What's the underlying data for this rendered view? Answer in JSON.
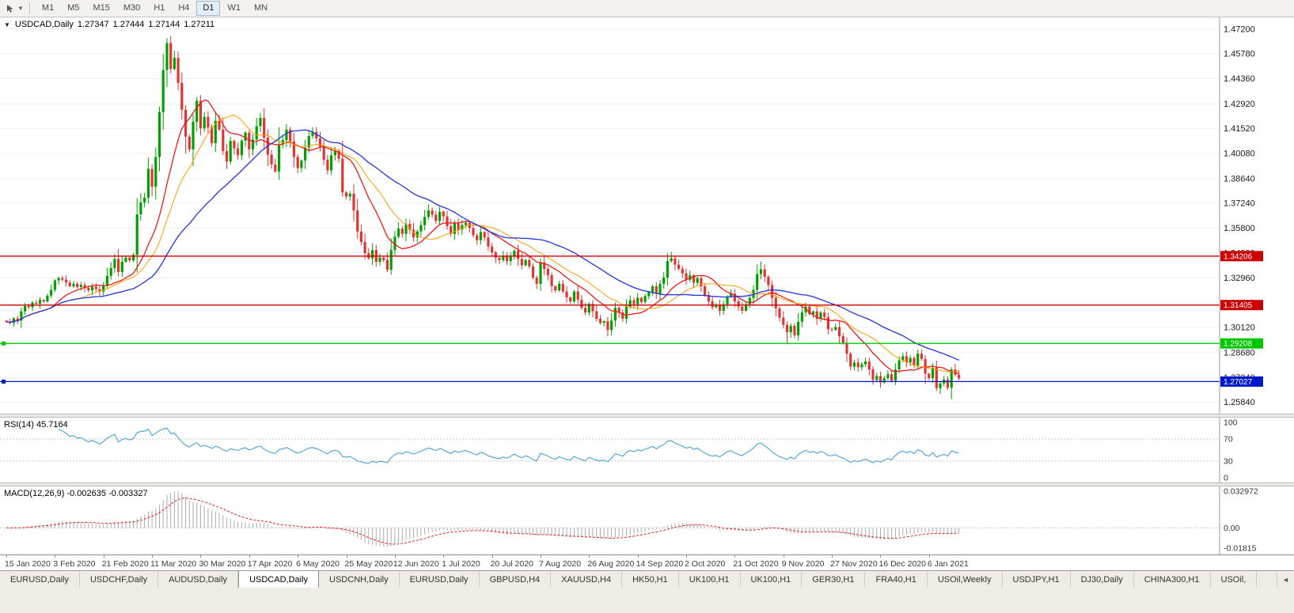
{
  "toolbar": {
    "tools": [
      {
        "name": "cursor-tool"
      }
    ],
    "timeframes": [
      "M1",
      "M5",
      "M15",
      "M30",
      "H1",
      "H4",
      "D1",
      "W1",
      "MN"
    ],
    "active_timeframe": "D1",
    "caret": "▼"
  },
  "chart_title": {
    "collapse_icon": "▼",
    "symbol": "USDCAD,Daily",
    "open": "1.27347",
    "high": "1.27444",
    "low": "1.27144",
    "close": "1.27211"
  },
  "chart_data": {
    "type": "candlestick",
    "symbol": "USDCAD",
    "timeframe": "Daily",
    "up_color": "#00A000",
    "down_color": "#E03535",
    "first_open": 1.3052,
    "price_top": 1.4787,
    "price_bottom": 1.2519,
    "closes": [
      1.3045,
      1.3038,
      1.3065,
      1.3052,
      1.3105,
      1.3135,
      1.3128,
      1.3155,
      1.3148,
      1.317,
      1.3162,
      1.3195,
      1.3228,
      1.3282,
      1.3296,
      1.3286,
      1.327,
      1.3248,
      1.3262,
      1.3244,
      1.3256,
      1.3238,
      1.3225,
      1.3246,
      1.3232,
      1.3218,
      1.3252,
      1.3308,
      1.3352,
      1.3405,
      1.333,
      1.3388,
      1.3412,
      1.3396,
      1.3428,
      1.366,
      1.3728,
      1.3755,
      1.392,
      1.3818,
      1.3988,
      1.4245,
      1.4486,
      1.464,
      1.4492,
      1.4555,
      1.4412,
      1.4258,
      1.4105,
      1.4032,
      1.419,
      1.431,
      1.4152,
      1.4218,
      1.4158,
      1.4068,
      1.4195,
      1.4145,
      1.4022,
      1.3962,
      1.408,
      1.4038,
      1.3998,
      1.4082,
      1.4128,
      1.4032,
      1.4088,
      1.4165,
      1.4212,
      1.4098,
      1.4002,
      1.3945,
      1.3905,
      1.406,
      1.4085,
      1.4145,
      1.4078,
      1.3988,
      1.3925,
      1.3968,
      1.4042,
      1.4108,
      1.4132,
      1.4095,
      1.4048,
      1.3972,
      1.3912,
      1.3998,
      1.4025,
      1.3978,
      1.3785,
      1.3762,
      1.3778,
      1.3682,
      1.3562,
      1.3502,
      1.3438,
      1.3408,
      1.3455,
      1.3388,
      1.3412,
      1.3398,
      1.3342,
      1.3455,
      1.3532,
      1.3578,
      1.3548,
      1.3605,
      1.3572,
      1.3528,
      1.3562,
      1.3598,
      1.3645,
      1.3682,
      1.3658,
      1.3622,
      1.3675,
      1.3648,
      1.3592,
      1.3548,
      1.3608,
      1.3572,
      1.3598,
      1.3612,
      1.3582,
      1.354,
      1.3512,
      1.3558,
      1.3528,
      1.3475,
      1.3442,
      1.3412,
      1.3398,
      1.3422,
      1.3392,
      1.3418,
      1.3452,
      1.3405,
      1.3368,
      1.3398,
      1.3362,
      1.3298,
      1.3262,
      1.3385,
      1.3348,
      1.3312,
      1.3248,
      1.3225,
      1.3262,
      1.3218,
      1.3185,
      1.3162,
      1.3218,
      1.3172,
      1.3125,
      1.3098,
      1.3148,
      1.3105,
      1.3062,
      1.3038,
      1.3048,
      1.2998,
      1.3052,
      1.3125,
      1.3098,
      1.3062,
      1.3132,
      1.3168,
      1.3145,
      1.3182,
      1.3158,
      1.3192,
      1.3215,
      1.3248,
      1.3205,
      1.3262,
      1.3298,
      1.3392,
      1.3408,
      1.3372,
      1.3348,
      1.3322,
      1.3285,
      1.3312,
      1.3268,
      1.3295,
      1.3248,
      1.3198,
      1.3162,
      1.3128,
      1.3142,
      1.3108,
      1.3145,
      1.3188,
      1.3205,
      1.3162,
      1.3132,
      1.3108,
      1.3145,
      1.3182,
      1.3228,
      1.3318,
      1.3345,
      1.3302,
      1.3255,
      1.3182,
      1.3122,
      1.3068,
      1.3028,
      1.2985,
      1.3022,
      1.2968,
      1.3045,
      1.3098,
      1.3132,
      1.3088,
      1.3105,
      1.3062,
      1.3098,
      1.3072,
      1.3002,
      1.2998,
      1.3015,
      1.2962,
      1.2925,
      1.2862,
      1.2788,
      1.2812,
      1.2785,
      1.2802,
      1.2818,
      1.2772,
      1.2712,
      1.2735,
      1.2698,
      1.2722,
      1.2745,
      1.2708,
      1.2772,
      1.2825,
      1.2848,
      1.2812,
      1.2838,
      1.2795,
      1.2862,
      1.2832,
      1.2748,
      1.2722,
      1.2782,
      1.2665,
      1.2692,
      1.2715,
      1.2668,
      1.2772,
      1.2742,
      1.2721
    ],
    "wick_overrides": [
      {
        "bar": 43,
        "high": 1.4669
      },
      {
        "bar": 178,
        "high": 1.3445
      },
      {
        "bar": 202,
        "high": 1.339
      },
      {
        "bar": 209,
        "low": 1.2922
      },
      {
        "bar": 249,
        "low": 1.2648
      },
      {
        "bar": 250,
        "low": 1.263
      },
      {
        "bar": 252,
        "low": 1.2655
      }
    ],
    "mas": [
      {
        "period": 13,
        "color": "#F01818",
        "width": 1.3
      },
      {
        "period": 21,
        "color": "#FF9C00",
        "width": 1.0
      },
      {
        "period": 40,
        "color": "#2233DD",
        "width": 1.3
      }
    ],
    "hlines": [
      {
        "price": 1.34206,
        "color": "#CC0000",
        "tag": "1.34206",
        "handle": false
      },
      {
        "price": 1.31405,
        "color": "#CC0000",
        "tag": "1.31405",
        "handle": false
      },
      {
        "price": 1.29208,
        "color": "#00C800",
        "tag": "1.29208",
        "handle": true
      },
      {
        "price": 1.27027,
        "color": "#0018C8",
        "tag": "1.27027",
        "handle": true
      }
    ],
    "y_axis_labels": [
      "1.47200",
      "1.45780",
      "1.44360",
      "1.42920",
      "1.41520",
      "1.40080",
      "1.38640",
      "1.37240",
      "1.35800",
      "1.34380",
      "1.32960",
      "1.31520",
      "1.30120",
      "1.28680",
      "1.27240",
      "1.25840"
    ],
    "x_labels": [
      {
        "bar": 0,
        "text": "15 Jan 2020"
      },
      {
        "bar": 13,
        "text": "3 Feb 2020"
      },
      {
        "bar": 26,
        "text": "21 Feb 2020"
      },
      {
        "bar": 39,
        "text": "11 Mar 2020"
      },
      {
        "bar": 52,
        "text": "30 Mar 2020"
      },
      {
        "bar": 65,
        "text": "17 Apr 2020"
      },
      {
        "bar": 78,
        "text": "6 May 2020"
      },
      {
        "bar": 91,
        "text": "25 May 2020"
      },
      {
        "bar": 104,
        "text": "12 Jun 2020"
      },
      {
        "bar": 117,
        "text": "1 Jul 2020"
      },
      {
        "bar": 130,
        "text": "20 Jul 2020"
      },
      {
        "bar": 143,
        "text": "7 Aug 2020"
      },
      {
        "bar": 156,
        "text": "26 Aug 2020"
      },
      {
        "bar": 169,
        "text": "14 Sep 2020"
      },
      {
        "bar": 182,
        "text": "2 Oct 2020"
      },
      {
        "bar": 195,
        "text": "21 Oct 2020"
      },
      {
        "bar": 208,
        "text": "9 Nov 2020"
      },
      {
        "bar": 221,
        "text": "27 Nov 2020"
      },
      {
        "bar": 234,
        "text": "16 Dec 2020"
      },
      {
        "bar": 247,
        "text": "6 Jan 2021"
      }
    ],
    "rsi": {
      "label": "RSI(14) 45.7164",
      "period": 14,
      "color": "#4AA0D5",
      "levels": [
        70,
        30
      ],
      "axis_labels": [
        {
          "v": 100,
          "text": "100"
        },
        {
          "v": 70,
          "text": "70"
        },
        {
          "v": 30,
          "text": "30"
        },
        {
          "v": 0,
          "text": "0"
        }
      ]
    },
    "macd": {
      "label": "MACD(12,26,9) -0.002635 -0.003327",
      "fast": 12,
      "slow": 26,
      "signal_period": 9,
      "histogram_color": "#ACACAC",
      "signal_color": "#E02020",
      "scale_max": 0.032972,
      "scale_min": -0.01815,
      "axis_labels": [
        {
          "v": 0.032972,
          "text": "0.032972"
        },
        {
          "v": 0,
          "text": "0.00"
        },
        {
          "v": -0.01815,
          "text": "-0.01815"
        }
      ]
    }
  },
  "bottom_tabs": {
    "scroll_left": "◄",
    "tabs": [
      {
        "label": "EURUSD,Daily",
        "active": false
      },
      {
        "label": "USDCHF,Daily",
        "active": false
      },
      {
        "label": "AUDUSD,Daily",
        "active": false
      },
      {
        "label": "USDCAD,Daily",
        "active": true
      },
      {
        "label": "USDCNH,Daily",
        "active": false
      },
      {
        "label": "EURUSD,Daily",
        "active": false
      },
      {
        "label": "GBPUSD,H4",
        "active": false
      },
      {
        "label": "XAUUSD,H4",
        "active": false
      },
      {
        "label": "HK50,H1",
        "active": false
      },
      {
        "label": "UK100,H1",
        "active": false
      },
      {
        "label": "UK100,H1",
        "active": false
      },
      {
        "label": "GER30,H1",
        "active": false
      },
      {
        "label": "FRA40,H1",
        "active": false
      },
      {
        "label": "USOil,Weekly",
        "active": false
      },
      {
        "label": "USDJPY,H1",
        "active": false
      },
      {
        "label": "DJ30,Daily",
        "active": false
      },
      {
        "label": "CHINA300,H1",
        "active": false
      },
      {
        "label": "USOil,",
        "active": false
      }
    ]
  }
}
